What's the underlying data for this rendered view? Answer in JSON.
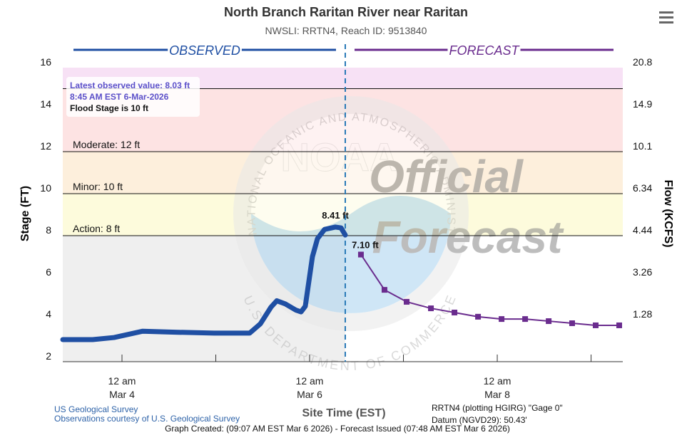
{
  "chart_data": {
    "type": "hydrograph",
    "title": "North Branch Raritan River near Raritan",
    "subtitle": "NWSLI: RRTN4, Reach ID: 9513840",
    "ylabel": "Stage (FT)",
    "y2label": "Flow (KCFS)",
    "xlabel": "Site Time (EST)",
    "xlim": [
      3.369,
      9.338
    ],
    "xticks": [
      {
        "value": 4,
        "label": [
          "12 am",
          "Mar 4"
        ]
      },
      {
        "value": 6,
        "label": [
          "12 am",
          "Mar 6"
        ]
      },
      {
        "value": 8,
        "label": [
          "12 am",
          "Mar 8"
        ]
      }
    ],
    "xminor_ticks": [
      5,
      7,
      9
    ],
    "ylim": [
      2,
      16
    ],
    "yticks": [
      2,
      4,
      6,
      8,
      10,
      12,
      14,
      16
    ],
    "y2ticks": [
      20.8,
      14.9,
      10.1,
      6.34,
      4.44,
      3.26,
      1.28
    ],
    "y2tick_stages": [
      16,
      14,
      12,
      10,
      8,
      6,
      4
    ],
    "forecast_start": 6.38,
    "section_labels": {
      "observed": "OBSERVED",
      "forecast": "FORECAST"
    },
    "flood_bands": [
      {
        "from": 15,
        "to": 16,
        "color": "#f7e1f5"
      },
      {
        "from": 12,
        "to": 15,
        "color": "#fde3e3"
      },
      {
        "from": 10,
        "to": 12,
        "color": "#fdefdc"
      },
      {
        "from": 8,
        "to": 10,
        "color": "#fdfbdc"
      },
      {
        "from": 2,
        "to": 8,
        "color": "#efefef"
      }
    ],
    "flood_lines": [
      {
        "label": null,
        "value": 15
      },
      {
        "label": "Moderate: 12 ft",
        "value": 12
      },
      {
        "label": "Minor: 10 ft",
        "value": 10
      },
      {
        "label": "Action: 8 ft",
        "value": 8
      }
    ],
    "info_box": [
      "Latest observed value: 8.03 ft",
      "8:45 AM EST 6-Mar-2026",
      "Flood Stage is 10 ft"
    ],
    "series": [
      {
        "name": "OBSERVED",
        "color": "#1f4fa3",
        "x": [
          3.369,
          3.688,
          3.916,
          4.221,
          4.601,
          4.981,
          5.361,
          5.475,
          5.589,
          5.65,
          5.741,
          5.856,
          5.909,
          5.954,
          6.03,
          6.084,
          6.16,
          6.274,
          6.335,
          6.38
        ],
        "values": [
          3.05,
          3.05,
          3.15,
          3.45,
          3.4,
          3.36,
          3.36,
          3.8,
          4.6,
          4.9,
          4.75,
          4.45,
          4.37,
          4.64,
          7.0,
          7.86,
          8.3,
          8.41,
          8.37,
          8.03
        ],
        "value_labels": [
          null,
          null,
          null,
          null,
          null,
          null,
          null,
          null,
          null,
          null,
          null,
          null,
          null,
          null,
          null,
          null,
          null,
          "8.41 ft",
          null,
          null
        ]
      },
      {
        "name": "FORECAST",
        "color": "#6a2c8e",
        "x": [
          6.547,
          6.798,
          7.034,
          7.293,
          7.544,
          7.795,
          8.046,
          8.297,
          8.548,
          8.798,
          9.049,
          9.3
        ],
        "values": [
          7.1,
          5.42,
          4.85,
          4.54,
          4.34,
          4.14,
          4.03,
          4.03,
          3.93,
          3.83,
          3.73,
          3.73
        ],
        "value_labels": [
          "7.10 ft",
          null,
          null,
          null,
          null,
          null,
          null,
          null,
          null,
          null,
          null,
          null
        ]
      }
    ],
    "watermark": {
      "logo": "NOAA",
      "ring_top": "NATIONAL OCEANIC AND ATMOSPHERIC ADMINISTRATION",
      "ring_bottom": "U.S. DEPARTMENT OF COMMERCE",
      "stamp": [
        "Official",
        "Forecast"
      ]
    },
    "footer": {
      "source": [
        "US Geological Survey",
        "Observations courtesy of U.S. Geological Survey"
      ],
      "gage": [
        "RRTN4 (plotting HGIRG) \"Gage 0\"",
        "Datum (NGVD29): 50.43'"
      ],
      "created": "Graph Created: (09:07 AM EST Mar 6 2026) - Forecast Issued (07:48 AM EST Mar 6 2026)"
    }
  }
}
